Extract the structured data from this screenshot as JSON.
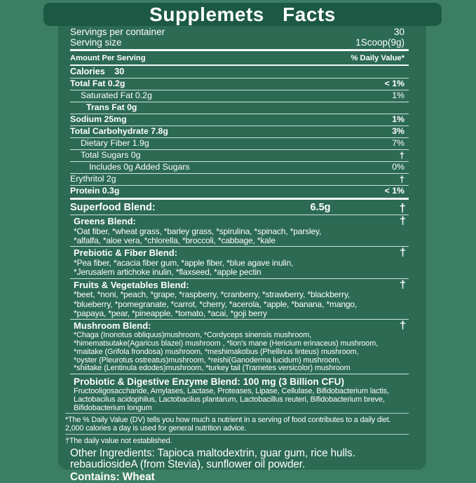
{
  "colors": {
    "outer_bg": "#3C7E63",
    "panel_bg": "#2C6A54",
    "title_band_bg": "#1C5945",
    "text": "#FFFFFF",
    "separator": "#F4F9F6"
  },
  "title": "Supplemets Facts",
  "header": {
    "servings_label": "Servings per container",
    "servings_value": "30",
    "serving_size_label": "Serving size",
    "serving_size_value": "1Scoop(9g)",
    "amount_label": "Amount Per Serving",
    "dv_label": "% Daily Value*",
    "calories_label": "Calories",
    "calories_value": "30"
  },
  "nutrients": [
    {
      "label": "Total Fat 0.2g",
      "value": "< 1%"
    },
    {
      "label": "Saturated Fat 0.2g",
      "value": "1%"
    },
    {
      "label": "Trans Fat 0g",
      "value": ""
    },
    {
      "label": "Sodium 25mg",
      "value": "1%"
    },
    {
      "label": "Total Carbohydrate 7.8g",
      "value": "3%"
    },
    {
      "label": "Dietary Fiber 1.9g",
      "value": "7%"
    },
    {
      "label": "Total Sugars 0g",
      "value": "†"
    },
    {
      "label": "Includes 0g Added Sugars",
      "value": "0%"
    },
    {
      "label": "Erythritol 2g",
      "value": "†"
    },
    {
      "label": "Protein 0.3g",
      "value": "< 1%"
    }
  ],
  "superfood": {
    "name": "Superfood Blend:",
    "amount": "6.5g",
    "dagger": "†"
  },
  "blends": [
    {
      "name": "Greens Blend:",
      "dagger": "†",
      "lines": [
        "*Oat fiber, *wheat grass, *barley grass, *spirulina, *spinach, *parsley,",
        "*alfalfa, *aloe vera, *chlorella, *broccoli, *cabbage, *kale"
      ]
    },
    {
      "name": "Prebiotic & Fiber Blend:",
      "dagger": "†",
      "lines": [
        "*Pea fiber, *acacia fiber gum, *apple fiber, *blue agave inulin,",
        "*Jerusalem artichoke inulin, *flaxseed, *apple pectin"
      ]
    },
    {
      "name": "Fruits & Vegetables Blend:",
      "dagger": "†",
      "lines": [
        "*beet, *noni, *peach, *grape, *raspberry, *cranberry, *strawberry, *blackberry,",
        "*blueberry, *pomegranate, *carrot, *cherry, *acerola, *apple, *banana, *mango,",
        "*papaya, *pear, *pineapple, *tomato, *acai, *goji berry"
      ]
    },
    {
      "name": "Mushroom Blend:",
      "dagger": "†",
      "lines": [
        "*Chaga (Inonotus obliquus)mushroom, *Cordyceps sinensis mushroom,",
        "*himematsutake(Agaricus blazei)  mushroom , *lion's mane (Hericium erinaceus) mushroom,",
        "*maitake (Grifola frondosa) mushroom, *meshimakobus (Phellinus linteus) mushroom,",
        "*oyster (Pleurotus ostreatus)mushroom, *reishi(Ganoderma lucidum) mushroom,",
        "*shiitake (Lentinula edodes)mushroom, *turkey tail (Trametes versicolor) mushroom"
      ]
    }
  ],
  "probiotic": {
    "name": "Probiotic & Digestive Enzyme Blend: 100 mg  (3 Billion CFU)",
    "lines": [
      "Fructooligosaccharide, Amylases, Lactase, Proteases, Lipase, Cellulase, Bifidobacterium lactis,",
      "Lactobacilus acidophilus, Lactobacilus plantarum, Lactobacillus reuteri, Bifidobacterium breve,",
      "Bifidobacterium longum"
    ]
  },
  "footnotes": {
    "dv_line1": "*The % Daily Value (DV) tells you how much a nutrient in a serving of food contributes to a daily diet.",
    "dv_line2": "2,000 calories a day is used for general nutrition advice.",
    "daily_note": "†The daily value not established."
  },
  "other_ingredients": {
    "line1": "Other Ingredients: Tapioca maltodextrin, guar gum, rice hulls.",
    "line2": "rebaudiosideA (from Stevia), sunflower oil powder.",
    "contains": "Contains: Wheat"
  }
}
